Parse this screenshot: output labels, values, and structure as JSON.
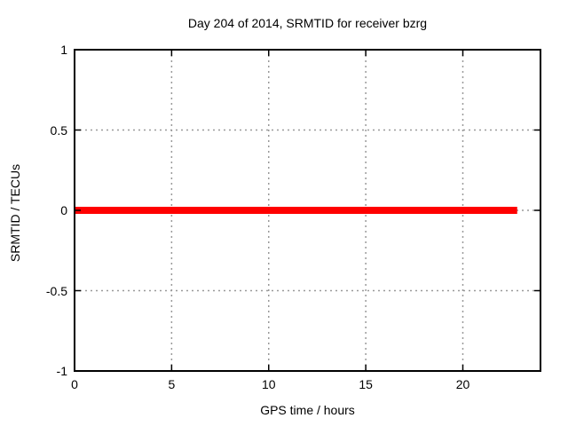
{
  "figure": {
    "background": "#ffffff"
  },
  "chart_data": {
    "type": "line",
    "title": "Day 204 of 2014, SRMTID for receiver bzrg",
    "xlabel": "GPS time / hours",
    "ylabel": "SRMTID / TECUs",
    "xlim": [
      0,
      24
    ],
    "ylim": [
      -1,
      1
    ],
    "xticks": {
      "values": [
        0,
        5,
        10,
        15,
        20
      ],
      "labels": [
        "0",
        "5",
        "10",
        "15",
        "20"
      ]
    },
    "yticks": {
      "values": [
        1,
        0.5,
        0,
        -0.5,
        -1
      ],
      "labels": [
        "1",
        "0.5",
        "0",
        "-0.5",
        "-1"
      ]
    },
    "grid": true,
    "grid_style": "dotted",
    "legend": "none",
    "colors": {
      "line": "#ff0000",
      "grid": "#9a9a9a",
      "axis": "#000000",
      "text": "#000000"
    },
    "series": [
      {
        "name": "SRMTID",
        "color": "#ff0000",
        "linewidth": 8,
        "x": [
          0,
          22.8
        ],
        "y": [
          0,
          0
        ]
      }
    ]
  }
}
